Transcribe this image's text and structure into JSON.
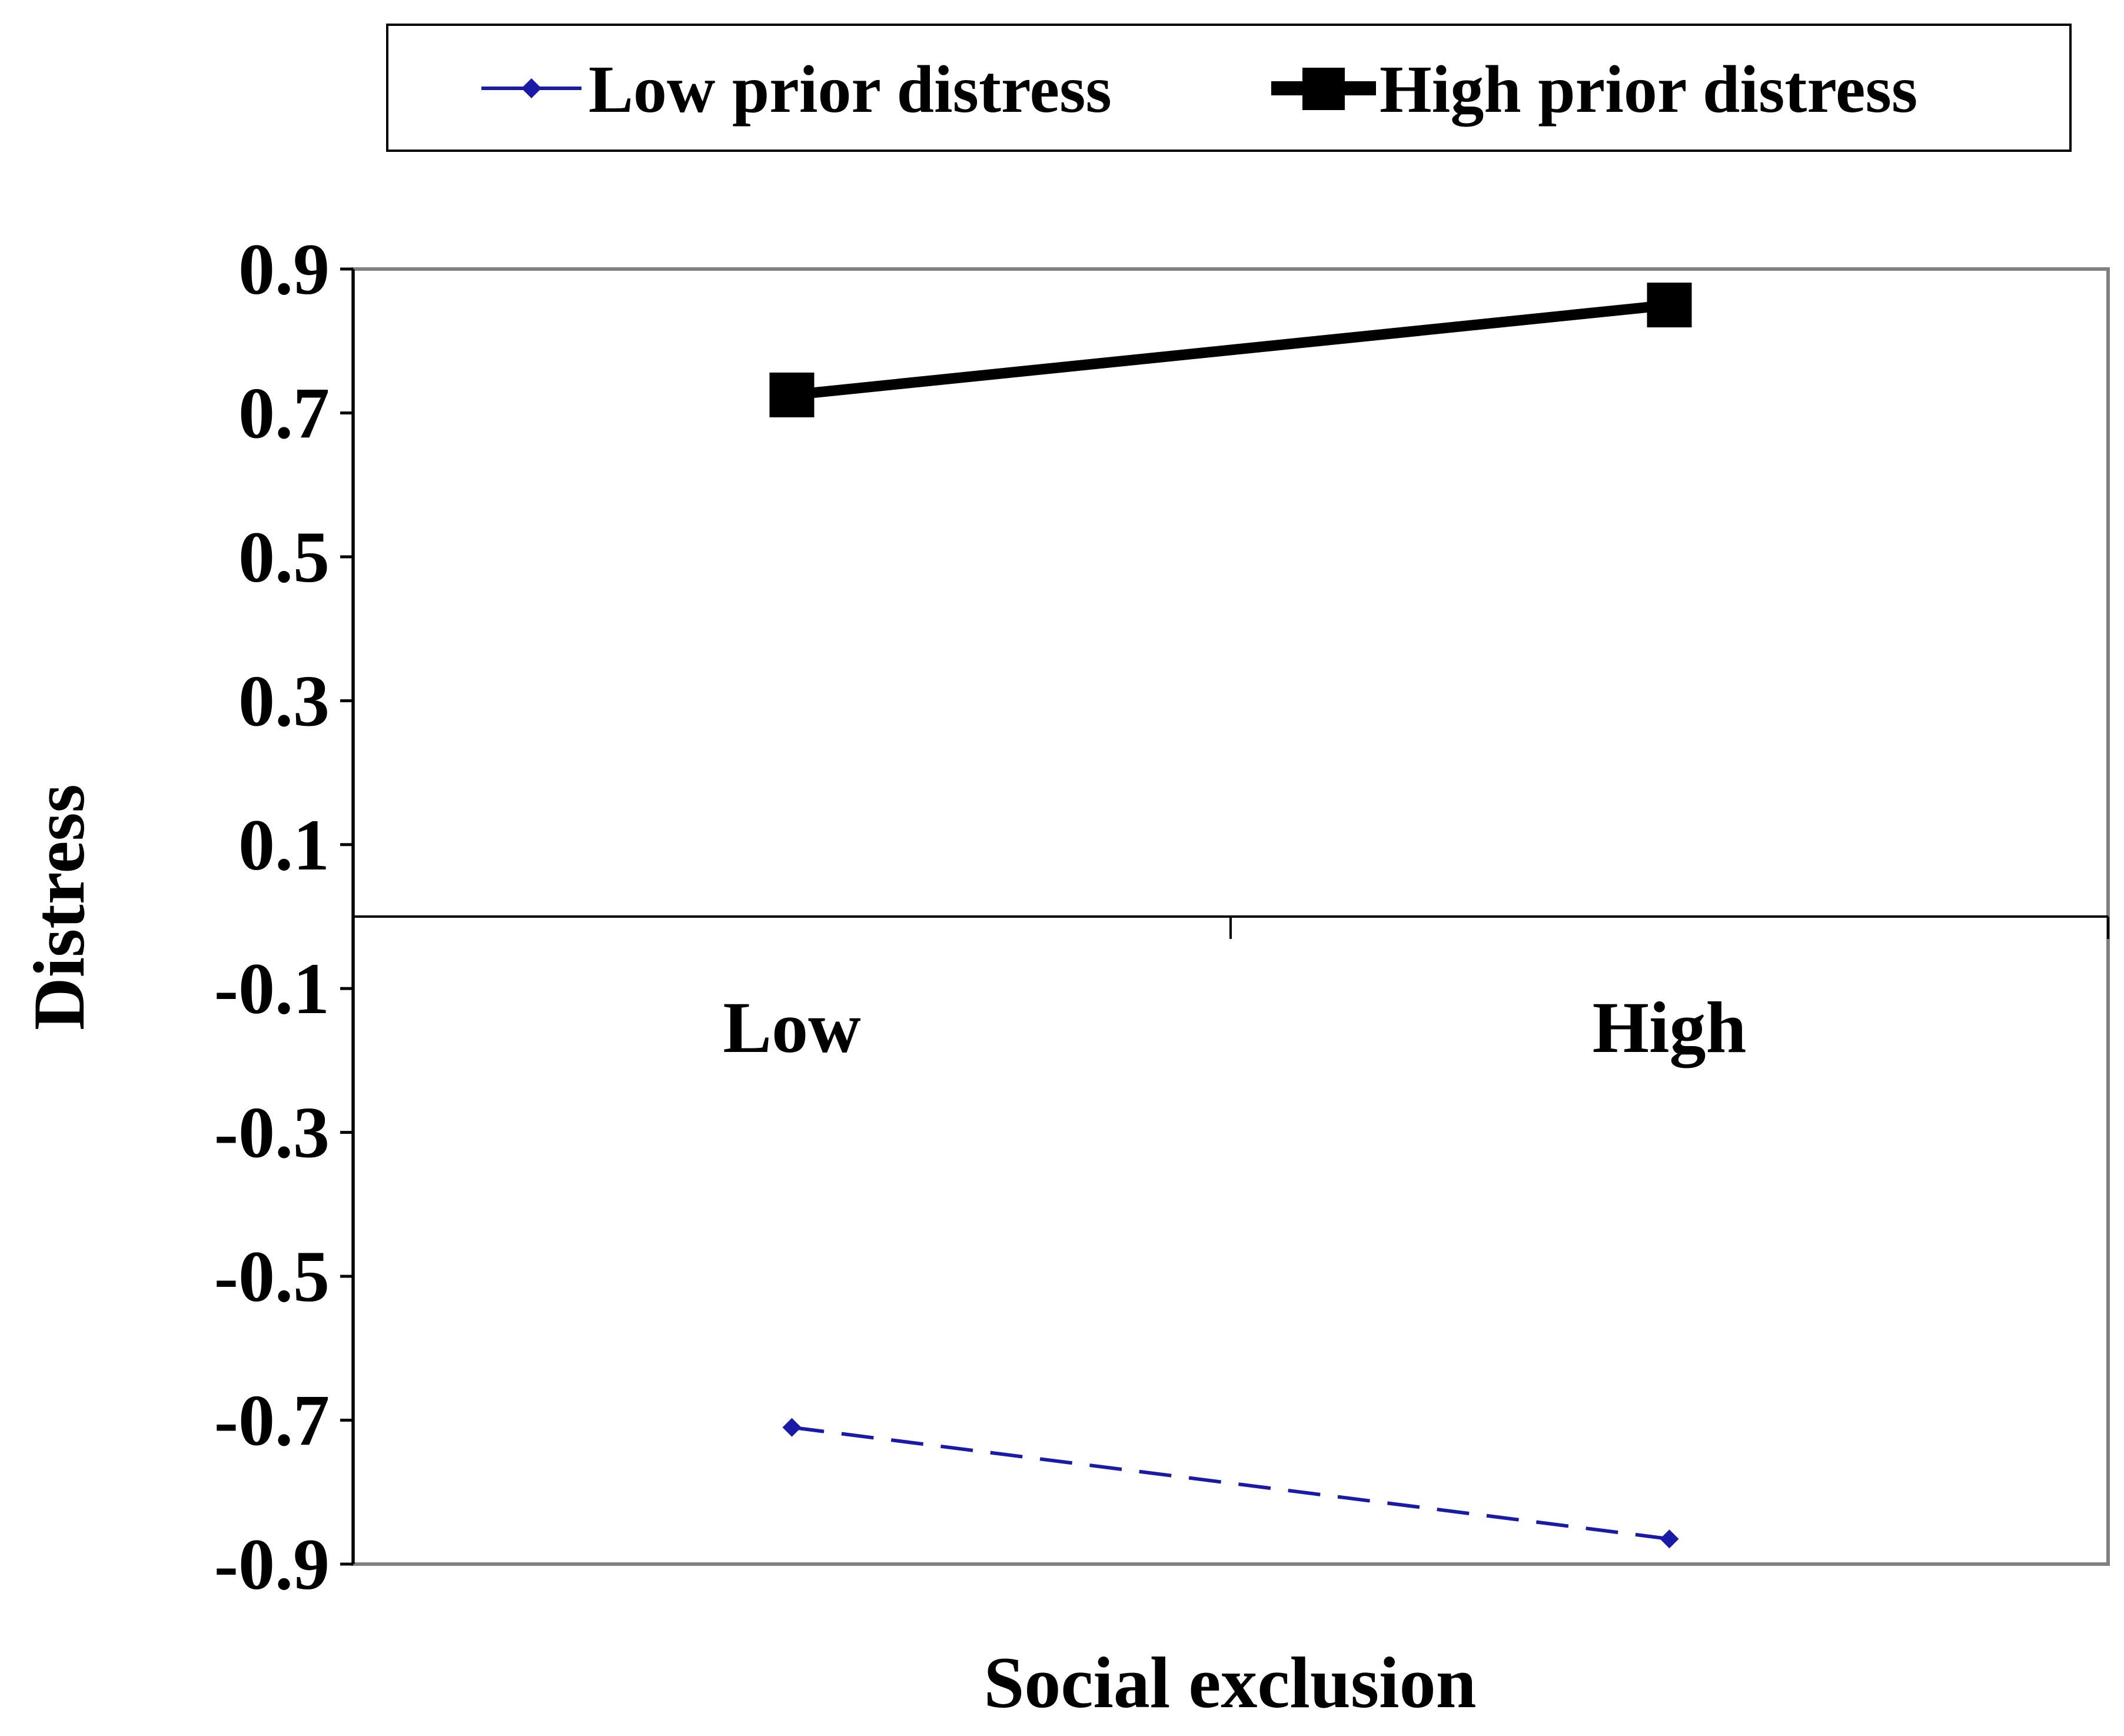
{
  "chart_data": {
    "type": "line",
    "categories": [
      "Low",
      "High"
    ],
    "series": [
      {
        "name": "Low prior distress",
        "values": [
          -0.71,
          -0.865
        ],
        "color": "#1a1aa8",
        "marker": "diamond",
        "line_style": "dashed"
      },
      {
        "name": "High prior distress",
        "values": [
          0.725,
          0.85
        ],
        "color": "#000000",
        "marker": "square",
        "line_style": "solid"
      }
    ],
    "title": "",
    "xlabel": "Social exclusion",
    "ylabel": "Distress",
    "ylim": [
      -0.9,
      0.9
    ],
    "yticks": [
      0.9,
      0.7,
      0.5,
      0.3,
      0.1,
      -0.1,
      -0.3,
      -0.5,
      -0.7,
      -0.9
    ],
    "ytick_labels": [
      "0.9",
      "0.7",
      "0.5",
      "0.3",
      "0.1",
      "-0.1",
      "-0.3",
      "-0.5",
      "-0.7",
      "-0.9"
    ],
    "x_axis_crosses_at": 0,
    "grid": false,
    "legend_position": "top"
  }
}
